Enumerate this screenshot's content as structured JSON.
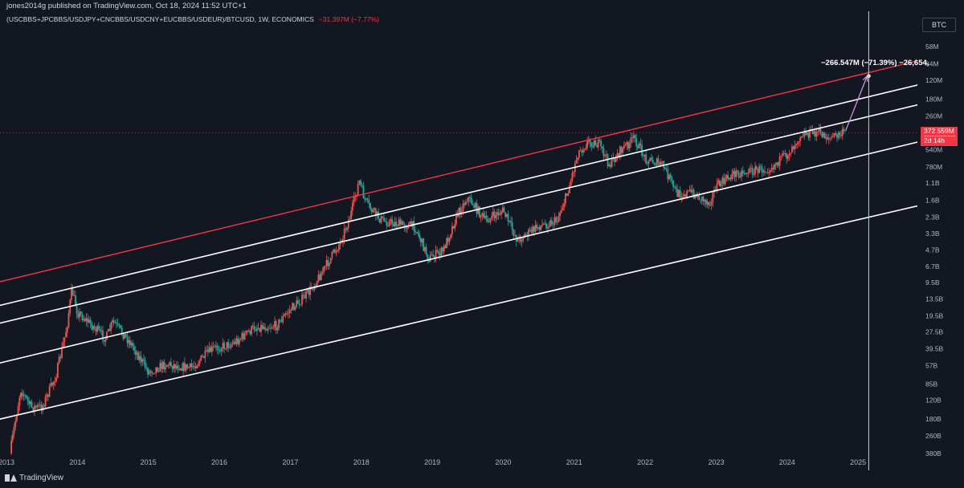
{
  "header": {
    "published": "jones2014g published on TradingView.com, Oct 18, 2024 11:52 UTC+1",
    "symbol": "(USCBBS+JPCBBS/USDJPY+CNCBBS/USDCNY+EUCBBS/USDEUR)/BTCUSD, 1W, ECONOMICS",
    "change": "−31.397M (−7.77%)"
  },
  "axis_badge": "BTC",
  "price_tag": {
    "value": "372.559M",
    "countdown": "2d 14h"
  },
  "annotation": "−266.547M (−71.39%) −26,654,",
  "footer": {
    "brand": "TradingView"
  },
  "colors": {
    "background": "#131722",
    "up_candle": "#ef5350",
    "down_candle": "#26a69a",
    "upper_channel": "#f23645",
    "channel": "#ffffff",
    "vertical_marker": "#d4e157",
    "projection_arrow": "#ce93d8",
    "price_line": "#f23645"
  },
  "chart_data": {
    "type": "candlestick",
    "scale": "log",
    "title": "",
    "xlabel": "",
    "ylabel": "",
    "x_ticks": [
      "2013",
      "2014",
      "2015",
      "2016",
      "2017",
      "2018",
      "2019",
      "2020",
      "2021",
      "2022",
      "2023",
      "2024",
      "2025"
    ],
    "y_ticks": [
      "58M",
      "84M",
      "120M",
      "180M",
      "260M",
      "372.559M",
      "540M",
      "780M",
      "1.1B",
      "1.6B",
      "2.3B",
      "3.3B",
      "4.7B",
      "6.7B",
      "9.5B",
      "13.5B",
      "19.5B",
      "27.5B",
      "39.5B",
      "57B",
      "85B",
      "120B",
      "180B",
      "260B",
      "380B"
    ],
    "x_range": [
      2013.0,
      2025.7
    ],
    "path_points": [
      {
        "date": 2013.05,
        "value_b": 380
      },
      {
        "date": 2013.2,
        "value_b": 95
      },
      {
        "date": 2013.35,
        "value_b": 140
      },
      {
        "date": 2013.5,
        "value_b": 140
      },
      {
        "date": 2013.7,
        "value_b": 70
      },
      {
        "date": 2013.85,
        "value_b": 25
      },
      {
        "date": 2013.92,
        "value_b": 11
      },
      {
        "date": 2014.0,
        "value_b": 18
      },
      {
        "date": 2014.15,
        "value_b": 22
      },
      {
        "date": 2014.4,
        "value_b": 32
      },
      {
        "date": 2014.5,
        "value_b": 22
      },
      {
        "date": 2014.75,
        "value_b": 35
      },
      {
        "date": 2015.0,
        "value_b": 65
      },
      {
        "date": 2015.25,
        "value_b": 55
      },
      {
        "date": 2015.6,
        "value_b": 60
      },
      {
        "date": 2015.9,
        "value_b": 40
      },
      {
        "date": 2016.2,
        "value_b": 35
      },
      {
        "date": 2016.5,
        "value_b": 25
      },
      {
        "date": 2016.8,
        "value_b": 24
      },
      {
        "date": 2017.0,
        "value_b": 17
      },
      {
        "date": 2017.25,
        "value_b": 12
      },
      {
        "date": 2017.45,
        "value_b": 7.5
      },
      {
        "date": 2017.7,
        "value_b": 4.0
      },
      {
        "date": 2017.85,
        "value_b": 2.2
      },
      {
        "date": 2017.97,
        "value_b": 1.05
      },
      {
        "date": 2018.05,
        "value_b": 1.6
      },
      {
        "date": 2018.15,
        "value_b": 2.0
      },
      {
        "date": 2018.3,
        "value_b": 2.5
      },
      {
        "date": 2018.55,
        "value_b": 2.7
      },
      {
        "date": 2018.75,
        "value_b": 2.8
      },
      {
        "date": 2018.95,
        "value_b": 5.6
      },
      {
        "date": 2019.15,
        "value_b": 4.8
      },
      {
        "date": 2019.35,
        "value_b": 2.2
      },
      {
        "date": 2019.5,
        "value_b": 1.5
      },
      {
        "date": 2019.75,
        "value_b": 2.5
      },
      {
        "date": 2020.0,
        "value_b": 2.0
      },
      {
        "date": 2020.2,
        "value_b": 3.8
      },
      {
        "date": 2020.5,
        "value_b": 2.8
      },
      {
        "date": 2020.75,
        "value_b": 2.5
      },
      {
        "date": 2020.9,
        "value_b": 1.4
      },
      {
        "date": 2021.05,
        "value_b": 0.58
      },
      {
        "date": 2021.2,
        "value_b": 0.45
      },
      {
        "date": 2021.35,
        "value_b": 0.48
      },
      {
        "date": 2021.5,
        "value_b": 0.75
      },
      {
        "date": 2021.65,
        "value_b": 0.55
      },
      {
        "date": 2021.85,
        "value_b": 0.42
      },
      {
        "date": 2022.0,
        "value_b": 0.65
      },
      {
        "date": 2022.25,
        "value_b": 0.75
      },
      {
        "date": 2022.45,
        "value_b": 1.4
      },
      {
        "date": 2022.65,
        "value_b": 1.35
      },
      {
        "date": 2022.9,
        "value_b": 1.7
      },
      {
        "date": 2023.0,
        "value_b": 1.2
      },
      {
        "date": 2023.25,
        "value_b": 0.9
      },
      {
        "date": 2023.5,
        "value_b": 0.85
      },
      {
        "date": 2023.75,
        "value_b": 0.8
      },
      {
        "date": 2024.0,
        "value_b": 0.6
      },
      {
        "date": 2024.2,
        "value_b": 0.38
      },
      {
        "date": 2024.45,
        "value_b": 0.37
      },
      {
        "date": 2024.6,
        "value_b": 0.42
      },
      {
        "date": 2024.8,
        "value_b": 0.3726
      }
    ],
    "channel_lines": [
      {
        "name": "",
        "color": "#f23645",
        "from": {
          "date": 2013.0,
          "value_b": 9.0
        },
        "to": {
          "date": 2025.7,
          "value_b": 0.083
        }
      },
      {
        "name": "",
        "color": "#ffffff",
        "from": {
          "date": 2013.0,
          "value_b": 15.0
        },
        "to": {
          "date": 2025.7,
          "value_b": 0.14
        }
      },
      {
        "name": "",
        "color": "#ffffff",
        "from": {
          "date": 2013.0,
          "value_b": 22.0
        },
        "to": {
          "date": 2025.7,
          "value_b": 0.215
        }
      },
      {
        "name": "",
        "color": "#ffffff",
        "from": {
          "date": 2013.0,
          "value_b": 52.0
        },
        "to": {
          "date": 2025.7,
          "value_b": 0.48
        }
      },
      {
        "name": "",
        "color": "#ffffff",
        "from": {
          "date": 2013.0,
          "value_b": 175.0
        },
        "to": {
          "date": 2025.7,
          "value_b": 1.9
        }
      }
    ],
    "current_price": "372.559M",
    "projection": {
      "from": {
        "date": 2024.8,
        "value_b": 0.3726
      },
      "to": {
        "date": 2025.15,
        "value_b": 0.106
      }
    },
    "vertical_marker_date": 2025.15,
    "grid": false
  }
}
